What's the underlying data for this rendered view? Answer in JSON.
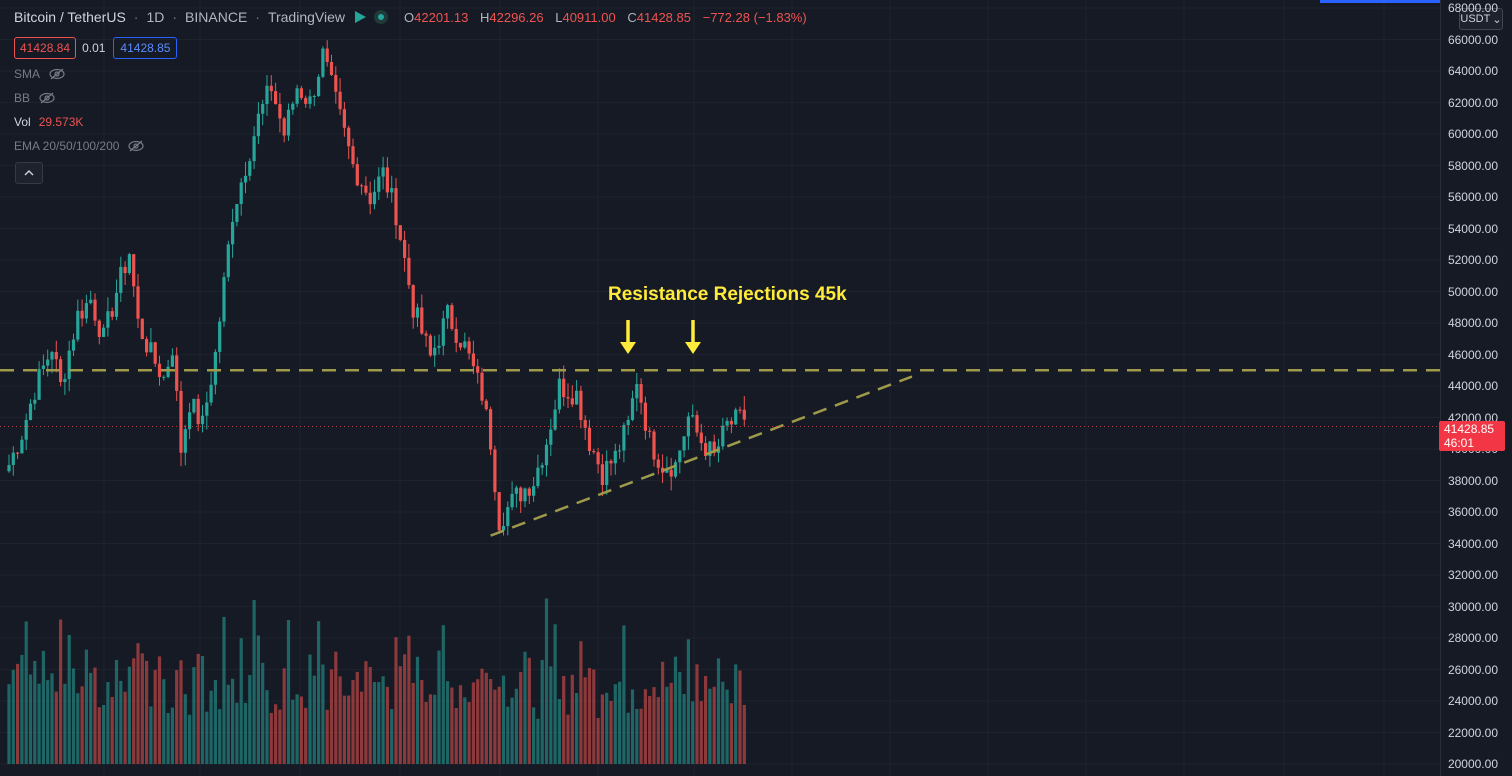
{
  "header": {
    "symbol": "Bitcoin / TetherUS",
    "interval": "1D",
    "exchange": "BINANCE",
    "source": "TradingView",
    "ohlc": {
      "o_label": "O",
      "o": "42201.13",
      "h_label": "H",
      "h": "42296.26",
      "l_label": "L",
      "l": "40911.00",
      "c_label": "C",
      "c": "41428.85",
      "change": "−772.28 (−1.83%)"
    }
  },
  "quote": {
    "bid": "41428.84",
    "spread": "0.01",
    "ask": "41428.85"
  },
  "indicators": {
    "sma": "SMA",
    "bb": "BB",
    "vol_label": "Vol",
    "vol_value": "29.573K",
    "ema": "EMA 20/50/100/200"
  },
  "price_axis": {
    "currency": "USDT",
    "labels": [
      "68000.00",
      "66000.00",
      "64000.00",
      "62000.00",
      "60000.00",
      "58000.00",
      "56000.00",
      "54000.00",
      "52000.00",
      "50000.00",
      "48000.00",
      "46000.00",
      "44000.00",
      "42000.00",
      "40000.00",
      "38000.00",
      "36000.00",
      "34000.00",
      "32000.00",
      "30000.00",
      "28000.00",
      "26000.00",
      "24000.00",
      "22000.00",
      "20000.00"
    ],
    "last_price": "41428.85",
    "countdown": "46:01"
  },
  "annotation": {
    "text": "Resistance Rejections 45k",
    "resistance_level": 45000
  },
  "colors": {
    "up": "#26a69a",
    "down": "#ef5350",
    "background": "#161a25",
    "annotation": "#ffeb3b",
    "trendline": "#9e9a4a"
  },
  "chart_data": {
    "type": "candlestick",
    "ylim": [
      20000,
      68000
    ],
    "resistance": 45000,
    "trendline": [
      {
        "candle": 112,
        "price": 34500
      },
      {
        "candle": 210,
        "price": 44600
      }
    ],
    "anchors": [
      [
        0,
        39000
      ],
      [
        3,
        41000
      ],
      [
        6,
        43800
      ],
      [
        10,
        46500
      ],
      [
        12,
        44000
      ],
      [
        16,
        48500
      ],
      [
        19,
        49500
      ],
      [
        22,
        47000
      ],
      [
        25,
        50000
      ],
      [
        28,
        52500
      ],
      [
        30,
        48000
      ],
      [
        33,
        46000
      ],
      [
        36,
        44500
      ],
      [
        38,
        46500
      ],
      [
        40,
        40000
      ],
      [
        42,
        43000
      ],
      [
        45,
        41500
      ],
      [
        48,
        46000
      ],
      [
        52,
        55000
      ],
      [
        55,
        58000
      ],
      [
        58,
        61000
      ],
      [
        61,
        63000
      ],
      [
        64,
        60000
      ],
      [
        67,
        63000
      ],
      [
        70,
        62000
      ],
      [
        73,
        65000
      ],
      [
        76,
        62000
      ],
      [
        80,
        58000
      ],
      [
        84,
        56000
      ],
      [
        87,
        57500
      ],
      [
        90,
        55000
      ],
      [
        94,
        49000
      ],
      [
        98,
        45800
      ],
      [
        102,
        48500
      ],
      [
        106,
        46500
      ],
      [
        110,
        43500
      ],
      [
        112,
        40500
      ],
      [
        114,
        35500
      ],
      [
        118,
        37000
      ],
      [
        122,
        38000
      ],
      [
        125,
        40500
      ],
      [
        128,
        44000
      ],
      [
        132,
        43500
      ],
      [
        135,
        40500
      ],
      [
        138,
        38500
      ],
      [
        141,
        39500
      ],
      [
        144,
        41500
      ],
      [
        146,
        44500
      ],
      [
        149,
        40500
      ],
      [
        152,
        39000
      ],
      [
        155,
        39000
      ],
      [
        158,
        42000
      ],
      [
        161,
        40500
      ],
      [
        164,
        39500
      ],
      [
        167,
        41500
      ],
      [
        171,
        42000
      ]
    ],
    "candle_count": 172
  }
}
